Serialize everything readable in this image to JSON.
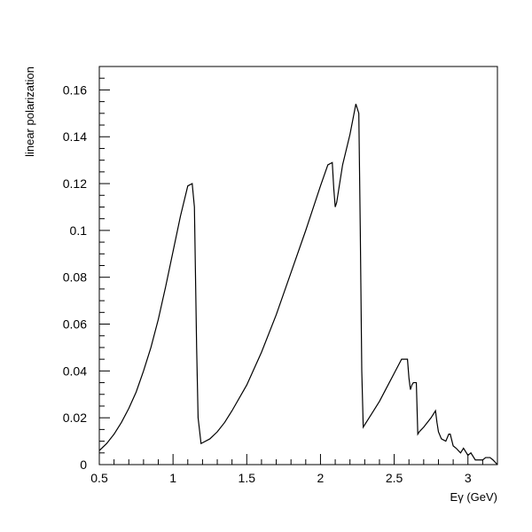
{
  "chart_data": {
    "type": "line",
    "title": "",
    "xlabel": "Eγ (GeV)",
    "ylabel": "linear polarization",
    "xlim": [
      0.5,
      3.2
    ],
    "ylim": [
      0,
      0.17
    ],
    "grid": false,
    "legend": "none",
    "line_color": "#000000",
    "x_ticks": [
      0.5,
      1,
      1.5,
      2,
      2.5,
      3
    ],
    "x_tick_labels": [
      "0.5",
      "1",
      "1.5",
      "2",
      "2.5",
      "3"
    ],
    "y_ticks": [
      0,
      0.02,
      0.04,
      0.06,
      0.08,
      0.1,
      0.12,
      0.14,
      0.16
    ],
    "y_tick_labels": [
      "0",
      "0.02",
      "0.04",
      "0.06",
      "0.08",
      "0.1",
      "0.12",
      "0.14",
      "0.16"
    ],
    "series": [
      {
        "x": [
          0.5,
          0.55,
          0.6,
          0.65,
          0.7,
          0.75,
          0.8,
          0.85,
          0.9,
          0.95,
          1.0,
          1.05,
          1.1,
          1.13,
          1.145,
          1.16,
          1.17,
          1.19,
          1.25,
          1.3,
          1.35,
          1.4,
          1.5,
          1.6,
          1.7,
          1.8,
          1.9,
          2.0,
          2.05,
          2.08,
          2.09,
          2.1,
          2.11,
          2.13,
          2.15,
          2.2,
          2.24,
          2.26,
          2.27,
          2.28,
          2.29,
          2.3,
          2.35,
          2.4,
          2.45,
          2.5,
          2.55,
          2.59,
          2.6,
          2.61,
          2.62,
          2.63,
          2.65,
          2.66,
          2.67,
          2.7,
          2.75,
          2.78,
          2.79,
          2.8,
          2.82,
          2.85,
          2.87,
          2.88,
          2.9,
          2.92,
          2.95,
          2.97,
          3.0,
          3.02,
          3.05,
          3.08,
          3.1,
          3.12,
          3.15,
          3.17,
          3.2
        ],
        "values": [
          0.006,
          0.009,
          0.013,
          0.018,
          0.024,
          0.031,
          0.04,
          0.05,
          0.062,
          0.076,
          0.091,
          0.106,
          0.119,
          0.12,
          0.11,
          0.05,
          0.02,
          0.009,
          0.011,
          0.014,
          0.018,
          0.023,
          0.034,
          0.048,
          0.064,
          0.082,
          0.1,
          0.119,
          0.128,
          0.129,
          0.118,
          0.11,
          0.112,
          0.12,
          0.128,
          0.141,
          0.154,
          0.15,
          0.1,
          0.04,
          0.016,
          0.017,
          0.022,
          0.027,
          0.033,
          0.039,
          0.045,
          0.045,
          0.037,
          0.032,
          0.034,
          0.035,
          0.035,
          0.013,
          0.014,
          0.016,
          0.02,
          0.023,
          0.018,
          0.014,
          0.011,
          0.01,
          0.013,
          0.013,
          0.008,
          0.007,
          0.005,
          0.007,
          0.004,
          0.005,
          0.002,
          0.002,
          0.002,
          0.003,
          0.003,
          0.002,
          0.0
        ]
      }
    ]
  }
}
